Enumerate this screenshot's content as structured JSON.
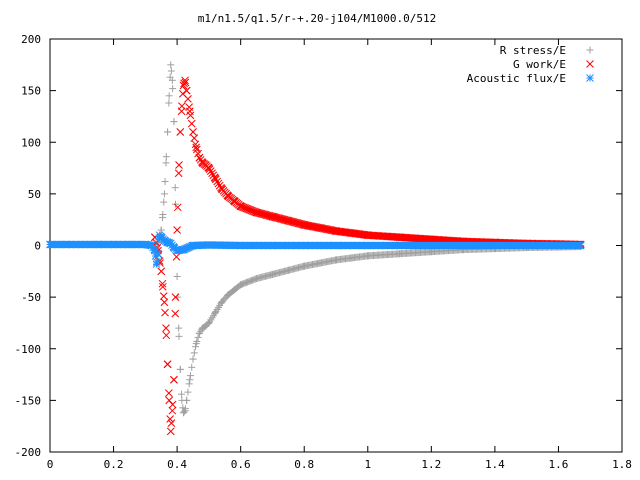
{
  "chart_data": {
    "type": "scatter",
    "title": "m1/n1.5/q1.5/r-+.20-j104/M1000.0/512",
    "xlabel": "",
    "ylabel": "",
    "xlim": [
      0,
      1.8
    ],
    "ylim": [
      -200,
      200
    ],
    "x_ticks": [
      "0",
      "0.2",
      "0.4",
      "0.6",
      "0.8",
      "1",
      "1.2",
      "1.4",
      "1.6",
      "1.8"
    ],
    "y_ticks": [
      "200",
      "150",
      "100",
      "50",
      "0",
      "-50",
      "-100",
      "-150",
      "-200"
    ],
    "grid": false,
    "legend_position": "top-right",
    "series": [
      {
        "name": "R stress/E",
        "marker": "plus",
        "color": "#a0a0a0",
        "x": [
          0.33,
          0.34,
          0.35,
          0.355,
          0.36,
          0.365,
          0.37,
          0.375,
          0.38,
          0.385,
          0.39,
          0.395,
          0.4,
          0.405,
          0.41,
          0.415,
          0.42,
          0.425,
          0.43,
          0.44,
          0.45,
          0.46,
          0.47,
          0.48,
          0.49,
          0.5,
          0.52,
          0.54,
          0.56,
          0.58,
          0.6,
          0.65,
          0.7,
          0.75,
          0.8,
          0.85,
          0.9,
          0.95,
          1.0,
          1.1,
          1.2,
          1.3,
          1.4,
          1.5,
          1.6,
          1.67
        ],
        "y": [
          -5,
          3,
          15,
          30,
          50,
          80,
          110,
          145,
          175,
          160,
          120,
          40,
          -30,
          -80,
          -120,
          -150,
          -162,
          -160,
          -150,
          -130,
          -110,
          -95,
          -85,
          -80,
          -78,
          -75,
          -65,
          -55,
          -48,
          -43,
          -38,
          -32,
          -28,
          -24,
          -20,
          -17,
          -14,
          -12,
          -10,
          -8,
          -6,
          -4,
          -3,
          -2,
          -1.5,
          -1
        ]
      },
      {
        "name": "G work/E",
        "marker": "cross",
        "color": "#ff0000",
        "x": [
          0.33,
          0.34,
          0.345,
          0.35,
          0.355,
          0.36,
          0.365,
          0.37,
          0.375,
          0.38,
          0.385,
          0.39,
          0.395,
          0.4,
          0.405,
          0.41,
          0.415,
          0.42,
          0.425,
          0.43,
          0.44,
          0.45,
          0.46,
          0.47,
          0.48,
          0.49,
          0.5,
          0.52,
          0.54,
          0.56,
          0.58,
          0.6,
          0.65,
          0.7,
          0.75,
          0.8,
          0.85,
          0.9,
          0.95,
          1.0,
          1.1,
          1.2,
          1.3,
          1.4,
          1.5,
          1.6,
          1.67
        ],
        "y": [
          8,
          -5,
          -15,
          -25,
          -40,
          -55,
          -80,
          -115,
          -150,
          -180,
          -160,
          -130,
          -50,
          15,
          70,
          110,
          135,
          155,
          160,
          150,
          130,
          110,
          95,
          85,
          80,
          78,
          75,
          65,
          55,
          48,
          43,
          38,
          32,
          28,
          24,
          20,
          17,
          14,
          12,
          10,
          8,
          6,
          4,
          3,
          2,
          1.5,
          1
        ]
      },
      {
        "name": "Acoustic flux/E",
        "marker": "star",
        "color": "#1e90ff",
        "x": [
          0,
          0.05,
          0.1,
          0.15,
          0.2,
          0.25,
          0.3,
          0.32,
          0.33,
          0.335,
          0.34,
          0.345,
          0.35,
          0.36,
          0.37,
          0.38,
          0.39,
          0.4,
          0.42,
          0.45,
          0.5,
          0.6,
          0.7,
          0.8,
          0.9,
          1.0,
          1.1,
          1.2,
          1.3,
          1.4,
          1.5,
          1.6,
          1.67
        ],
        "y": [
          1,
          1,
          1,
          1,
          1,
          1,
          1,
          0,
          -5,
          -18,
          -8,
          10,
          8,
          5,
          3,
          2,
          -2,
          -5,
          -4,
          0,
          0.5,
          0,
          0,
          0,
          0,
          0,
          0,
          0,
          0,
          0,
          0,
          0,
          0
        ]
      }
    ]
  }
}
